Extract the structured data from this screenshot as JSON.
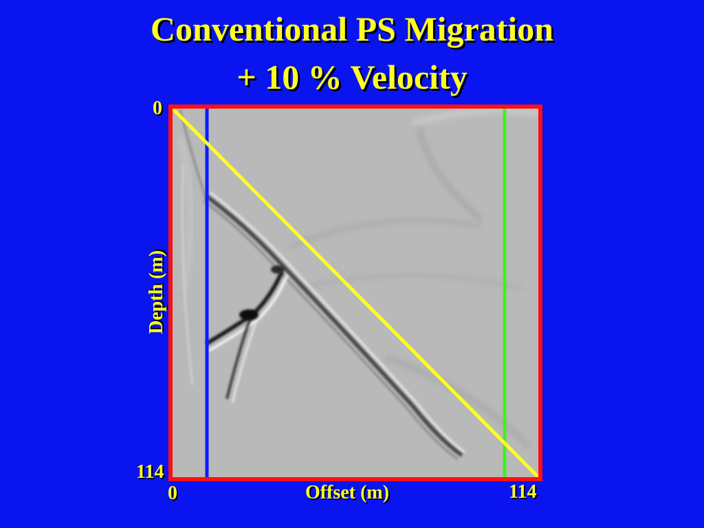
{
  "slide": {
    "title_line_1": "Conventional PS Migration",
    "title_line_2": "+ 10 % Velocity",
    "background_color": "#0a14f0",
    "text_color": "#ffff22"
  },
  "figure": {
    "y_axis_label": "Depth (m)",
    "x_axis_label": "Offset (m)",
    "y_tick_top": "0",
    "y_tick_bottom": "114",
    "x_tick_left": "0",
    "x_tick_right": "114",
    "x_range": [
      0,
      114
    ],
    "y_range": [
      0,
      114
    ],
    "frame_color": "#ff1010",
    "image_description": "grayscale migrated seismic section",
    "overlays": [
      {
        "name": "blue-vertical-line",
        "color": "#0a1eff",
        "type": "vertical",
        "offset_m": 11
      },
      {
        "name": "green-vertical-line",
        "color": "#44ee22",
        "type": "vertical",
        "offset_m": 103
      },
      {
        "name": "yellow-diagonal-line",
        "color": "#ffff22",
        "type": "diagonal",
        "from_m": [
          0,
          0
        ],
        "to_m": [
          114,
          114
        ]
      }
    ]
  }
}
